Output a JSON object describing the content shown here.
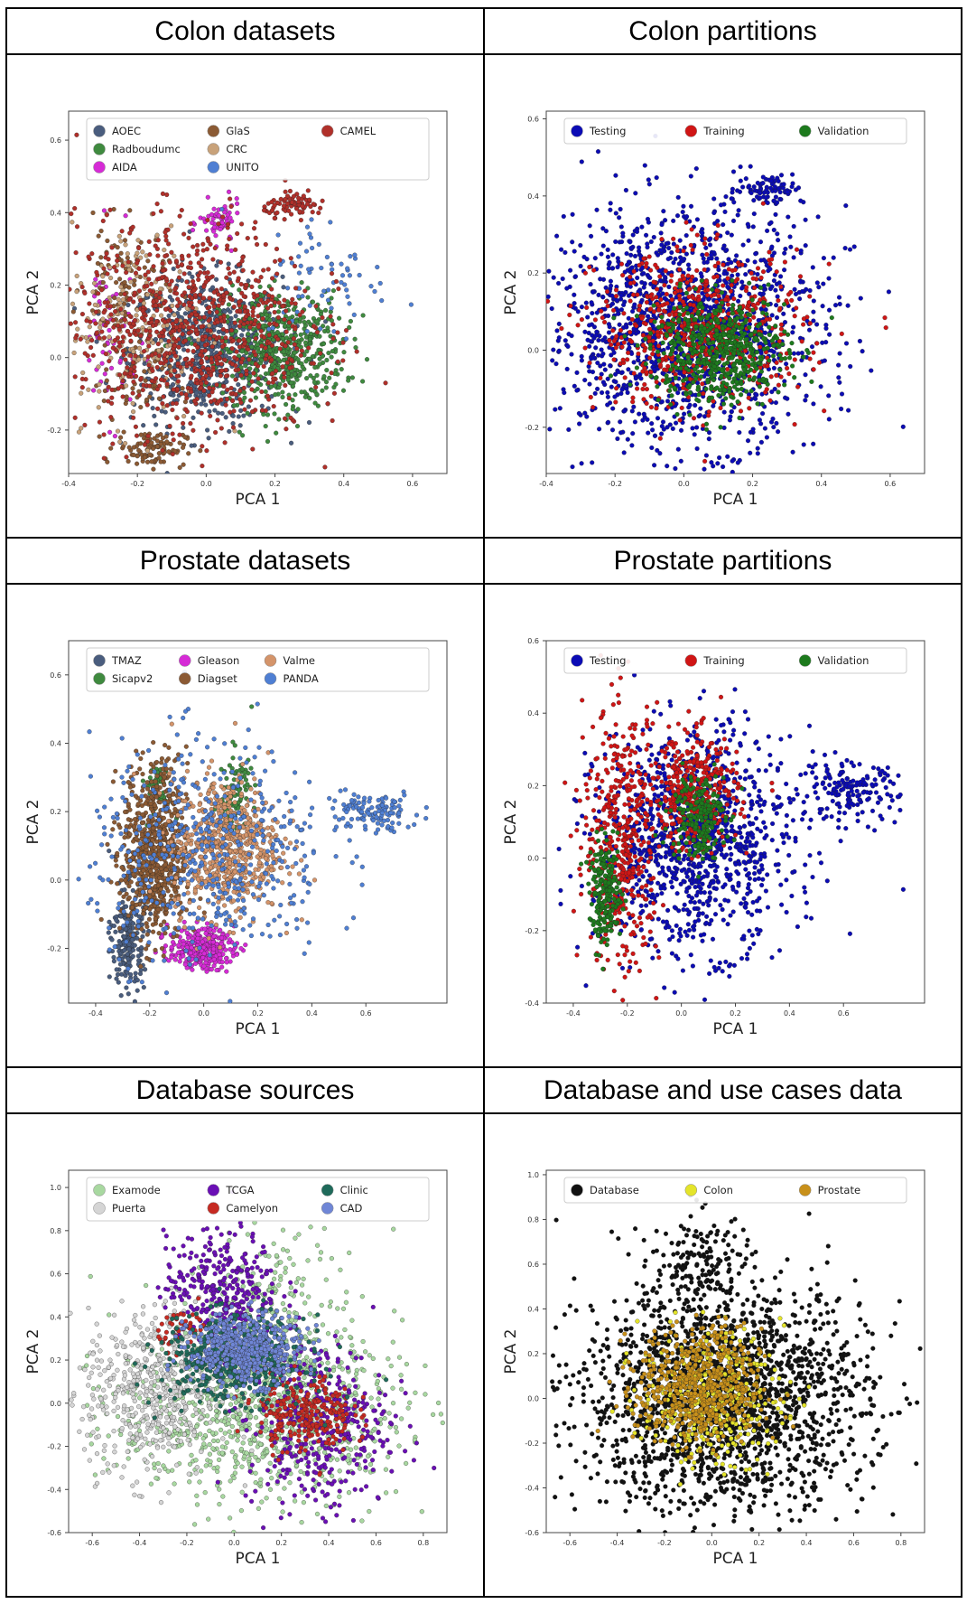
{
  "panels": [
    {
      "header": "Colon datasets",
      "chart_data": {
        "type": "scatter",
        "xlabel": "PCA 1",
        "ylabel": "PCA 2",
        "xlim": [
          -0.4,
          0.7
        ],
        "ylim": [
          -0.32,
          0.68
        ],
        "xticks": [
          "-0.4",
          "-0.2",
          "0.0",
          "0.2",
          "0.4",
          "0.6"
        ],
        "yticks": [
          "-0.2",
          "0.0",
          "0.2",
          "0.4",
          "0.6"
        ],
        "legend_position": "top",
        "legend_cols": 3,
        "grid": false,
        "series": [
          {
            "name": "AOEC",
            "color": "#4a5d7e",
            "clusters": [
              {
                "cx": 0.0,
                "cy": 0.02,
                "sx": 0.11,
                "sy": 0.1,
                "n": 650
              }
            ]
          },
          {
            "name": "Radboudumc",
            "color": "#3f8a3f",
            "clusters": [
              {
                "cx": 0.22,
                "cy": 0.02,
                "sx": 0.09,
                "sy": 0.08,
                "n": 550
              }
            ]
          },
          {
            "name": "AIDA",
            "color": "#d62bd6",
            "clusters": [
              {
                "cx": -0.28,
                "cy": 0.08,
                "sx": 0.04,
                "sy": 0.12,
                "n": 60
              },
              {
                "cx": 0.04,
                "cy": 0.37,
                "sx": 0.03,
                "sy": 0.03,
                "n": 60
              }
            ]
          },
          {
            "name": "GlaS",
            "color": "#8b5a34",
            "clusters": [
              {
                "cx": -0.24,
                "cy": 0.2,
                "sx": 0.06,
                "sy": 0.08,
                "n": 90
              },
              {
                "cx": -0.16,
                "cy": -0.25,
                "sx": 0.05,
                "sy": 0.025,
                "n": 100
              },
              {
                "cx": -0.2,
                "cy": -0.06,
                "sx": 0.05,
                "sy": 0.06,
                "n": 60
              }
            ]
          },
          {
            "name": "CRC",
            "color": "#c8a27a",
            "clusters": [
              {
                "cx": -0.2,
                "cy": 0.1,
                "sx": 0.1,
                "sy": 0.14,
                "n": 220
              }
            ]
          },
          {
            "name": "UNITO",
            "color": "#4f7fd3",
            "clusters": [
              {
                "cx": 0.35,
                "cy": 0.22,
                "sx": 0.09,
                "sy": 0.09,
                "n": 70
              }
            ]
          },
          {
            "name": "CAMEL",
            "color": "#b0302a",
            "clusters": [
              {
                "cx": -0.04,
                "cy": 0.08,
                "sx": 0.17,
                "sy": 0.15,
                "n": 900
              },
              {
                "cx": 0.26,
                "cy": 0.42,
                "sx": 0.045,
                "sy": 0.015,
                "n": 80
              }
            ]
          }
        ]
      }
    },
    {
      "header": "Colon partitions",
      "chart_data": {
        "type": "scatter",
        "xlabel": "PCA 1",
        "ylabel": "PCA 2",
        "xlim": [
          -0.4,
          0.7
        ],
        "ylim": [
          -0.32,
          0.62
        ],
        "xticks": [
          "-0.4",
          "-0.2",
          "0.0",
          "0.2",
          "0.4",
          "0.6"
        ],
        "yticks": [
          "-0.2",
          "0.0",
          "0.2",
          "0.4",
          "0.6"
        ],
        "legend_position": "top",
        "legend_cols": 3,
        "grid": false,
        "series": [
          {
            "name": "Testing",
            "color": "#0b0bb5",
            "clusters": [
              {
                "cx": 0.0,
                "cy": 0.06,
                "sx": 0.2,
                "sy": 0.15,
                "n": 1500
              },
              {
                "cx": 0.25,
                "cy": 0.42,
                "sx": 0.05,
                "sy": 0.02,
                "n": 80
              }
            ]
          },
          {
            "name": "Training",
            "color": "#d01515",
            "clusters": [
              {
                "cx": 0.05,
                "cy": 0.05,
                "sx": 0.15,
                "sy": 0.1,
                "n": 650
              }
            ]
          },
          {
            "name": "Validation",
            "color": "#1d7a1d",
            "clusters": [
              {
                "cx": 0.1,
                "cy": 0.0,
                "sx": 0.1,
                "sy": 0.07,
                "n": 550
              }
            ]
          }
        ]
      }
    },
    {
      "header": "Prostate datasets",
      "chart_data": {
        "type": "scatter",
        "xlabel": "PCA 1",
        "ylabel": "PCA 2",
        "xlim": [
          -0.5,
          0.9
        ],
        "ylim": [
          -0.36,
          0.7
        ],
        "xticks": [
          "-0.4",
          "-0.2",
          "0.0",
          "0.2",
          "0.4",
          "0.6"
        ],
        "yticks": [
          "-0.2",
          "0.0",
          "0.2",
          "0.4",
          "0.6"
        ],
        "legend_position": "top",
        "legend_cols": 4,
        "grid": false,
        "series": [
          {
            "name": "TMAZ",
            "color": "#4a5d7e",
            "clusters": [
              {
                "cx": -0.28,
                "cy": -0.17,
                "sx": 0.03,
                "sy": 0.08,
                "n": 220
              }
            ]
          },
          {
            "name": "Sicapv2",
            "color": "#3f8a3f",
            "clusters": [
              {
                "cx": 0.12,
                "cy": 0.25,
                "sx": 0.03,
                "sy": 0.06,
                "n": 100
              },
              {
                "cx": -0.17,
                "cy": 0.27,
                "sx": 0.03,
                "sy": 0.04,
                "n": 50
              }
            ]
          },
          {
            "name": "Gleason",
            "color": "#d62bd6",
            "clusters": [
              {
                "cx": -0.01,
                "cy": -0.2,
                "sx": 0.06,
                "sy": 0.03,
                "n": 280
              }
            ]
          },
          {
            "name": "Diagset",
            "color": "#8b5a34",
            "clusters": [
              {
                "cx": -0.18,
                "cy": 0.08,
                "sx": 0.06,
                "sy": 0.13,
                "n": 700
              }
            ]
          },
          {
            "name": "Valme",
            "color": "#d4946a",
            "clusters": [
              {
                "cx": 0.08,
                "cy": 0.1,
                "sx": 0.1,
                "sy": 0.1,
                "n": 650
              }
            ]
          },
          {
            "name": "PANDA",
            "color": "#4f7fd3",
            "clusters": [
              {
                "cx": 0.02,
                "cy": 0.08,
                "sx": 0.22,
                "sy": 0.16,
                "n": 500
              },
              {
                "cx": 0.62,
                "cy": 0.2,
                "sx": 0.09,
                "sy": 0.03,
                "n": 120
              }
            ]
          }
        ]
      }
    },
    {
      "header": "Prostate partitions",
      "chart_data": {
        "type": "scatter",
        "xlabel": "PCA 1",
        "ylabel": "PCA 2",
        "xlim": [
          -0.5,
          0.9
        ],
        "ylim": [
          -0.4,
          0.6
        ],
        "xticks": [
          "-0.4",
          "-0.2",
          "0.0",
          "0.2",
          "0.4",
          "0.6"
        ],
        "yticks": [
          "-0.4",
          "-0.2",
          "0.0",
          "0.2",
          "0.4",
          "0.6"
        ],
        "legend_position": "top",
        "legend_cols": 3,
        "grid": false,
        "series": [
          {
            "name": "Testing",
            "color": "#0b0bb5",
            "clusters": [
              {
                "cx": 0.05,
                "cy": 0.05,
                "sx": 0.18,
                "sy": 0.15,
                "n": 1100
              },
              {
                "cx": 0.62,
                "cy": 0.18,
                "sx": 0.09,
                "sy": 0.04,
                "n": 160
              }
            ]
          },
          {
            "name": "Training",
            "color": "#d01515",
            "clusters": [
              {
                "cx": -0.22,
                "cy": 0.05,
                "sx": 0.07,
                "sy": 0.18,
                "n": 450
              },
              {
                "cx": 0.05,
                "cy": 0.18,
                "sx": 0.08,
                "sy": 0.08,
                "n": 380
              }
            ]
          },
          {
            "name": "Validation",
            "color": "#1d7a1d",
            "clusters": [
              {
                "cx": -0.28,
                "cy": -0.1,
                "sx": 0.03,
                "sy": 0.07,
                "n": 200
              },
              {
                "cx": 0.06,
                "cy": 0.12,
                "sx": 0.05,
                "sy": 0.06,
                "n": 200
              }
            ]
          }
        ]
      }
    },
    {
      "header": "Database sources",
      "chart_data": {
        "type": "scatter",
        "xlabel": "PCA 1",
        "ylabel": "PCA 2",
        "xlim": [
          -0.7,
          0.9
        ],
        "ylim": [
          -0.6,
          1.08
        ],
        "xticks": [
          "-0.6",
          "-0.4",
          "-0.2",
          "0.0",
          "0.2",
          "0.4",
          "0.6",
          "0.8"
        ],
        "yticks": [
          "-0.6",
          "-0.4",
          "-0.2",
          "0.0",
          "0.2",
          "0.4",
          "0.6",
          "0.8",
          "1.0"
        ],
        "legend_position": "top",
        "legend_cols": 3,
        "grid": false,
        "series": [
          {
            "name": "Examode",
            "color": "#a8d8a0",
            "clusters": [
              {
                "cx": 0.1,
                "cy": -0.05,
                "sx": 0.3,
                "sy": 0.2,
                "n": 900
              },
              {
                "cx": 0.2,
                "cy": 0.5,
                "sx": 0.15,
                "sy": 0.15,
                "n": 150
              }
            ]
          },
          {
            "name": "Puerta",
            "color": "#d5d5d5",
            "clusters": [
              {
                "cx": -0.35,
                "cy": 0.05,
                "sx": 0.14,
                "sy": 0.2,
                "n": 500
              }
            ]
          },
          {
            "name": "TCGA",
            "color": "#6a0fb5",
            "clusters": [
              {
                "cx": 0.35,
                "cy": -0.1,
                "sx": 0.15,
                "sy": 0.2,
                "n": 400
              },
              {
                "cx": -0.05,
                "cy": 0.55,
                "sx": 0.12,
                "sy": 0.12,
                "n": 300
              }
            ]
          },
          {
            "name": "Camelyon",
            "color": "#c62a22",
            "clusters": [
              {
                "cx": 0.3,
                "cy": -0.05,
                "sx": 0.1,
                "sy": 0.09,
                "n": 250
              },
              {
                "cx": -0.2,
                "cy": 0.35,
                "sx": 0.06,
                "sy": 0.05,
                "n": 50
              }
            ]
          },
          {
            "name": "Clinic",
            "color": "#1f6a5a",
            "clusters": [
              {
                "cx": 0.0,
                "cy": 0.2,
                "sx": 0.15,
                "sy": 0.1,
                "n": 500
              }
            ]
          },
          {
            "name": "CAD",
            "color": "#6f86d6",
            "clusters": [
              {
                "cx": 0.05,
                "cy": 0.25,
                "sx": 0.12,
                "sy": 0.08,
                "n": 500
              }
            ]
          }
        ]
      }
    },
    {
      "header": "Database and use cases data",
      "chart_data": {
        "type": "scatter",
        "xlabel": "PCA 1",
        "ylabel": "PCA 2",
        "xlim": [
          -0.7,
          0.9
        ],
        "ylim": [
          -0.6,
          1.02
        ],
        "xticks": [
          "-0.6",
          "-0.4",
          "-0.2",
          "0.0",
          "0.2",
          "0.4",
          "0.6",
          "0.8"
        ],
        "yticks": [
          "-0.6",
          "-0.4",
          "-0.2",
          "0.0",
          "0.2",
          "0.4",
          "0.6",
          "0.8",
          "1.0"
        ],
        "legend_position": "top",
        "legend_cols": 3,
        "grid": false,
        "series": [
          {
            "name": "Database",
            "color": "#111111",
            "clusters": [
              {
                "cx": 0.05,
                "cy": 0.0,
                "sx": 0.3,
                "sy": 0.25,
                "n": 2000
              },
              {
                "cx": -0.05,
                "cy": 0.6,
                "sx": 0.1,
                "sy": 0.12,
                "n": 150
              }
            ]
          },
          {
            "name": "Colon",
            "color": "#e4e42a",
            "clusters": [
              {
                "cx": 0.0,
                "cy": 0.0,
                "sx": 0.15,
                "sy": 0.15,
                "n": 350
              }
            ]
          },
          {
            "name": "Prostate",
            "color": "#c8901a",
            "clusters": [
              {
                "cx": -0.05,
                "cy": 0.05,
                "sx": 0.13,
                "sy": 0.13,
                "n": 600
              }
            ]
          }
        ]
      }
    }
  ]
}
